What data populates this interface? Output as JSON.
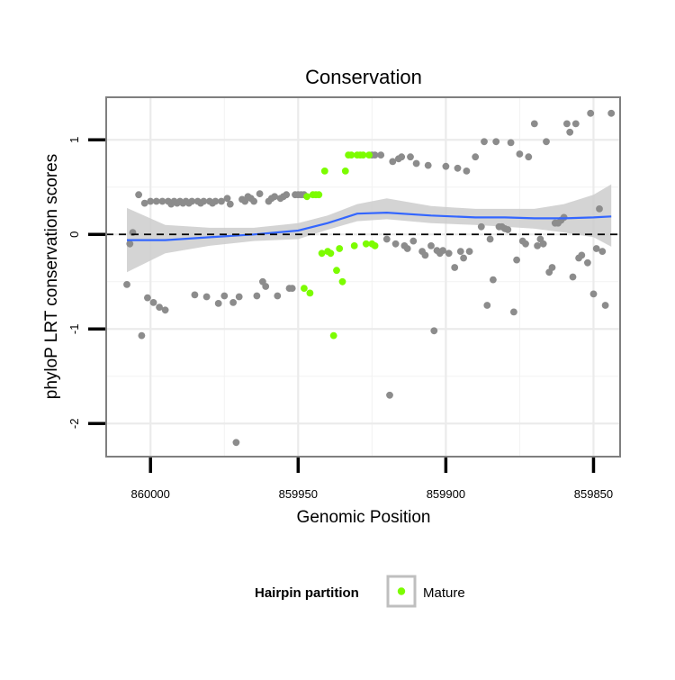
{
  "chart_data": {
    "type": "scatter",
    "title": "Conservation",
    "xlabel": "Genomic Position",
    "ylabel": "phyloP LRT conservation scores",
    "x_reversed": true,
    "xlim": [
      860015,
      859841
    ],
    "ylim": [
      -2.35,
      1.45
    ],
    "x_ticks": [
      860000,
      859950,
      859900,
      859850
    ],
    "y_ticks": [
      -2,
      -1,
      0,
      1
    ],
    "x_tick_labels": [
      "860000",
      "859950",
      "859900",
      "859850"
    ],
    "y_tick_labels": [
      "-2",
      "-1",
      "0",
      "1"
    ],
    "grid": true,
    "reference_line": {
      "y": 0,
      "style": "dashed"
    },
    "legend": {
      "title": "Hairpin partition",
      "placement": "bottom",
      "entries": [
        "Mature"
      ]
    },
    "colors": {
      "other": "#8c8c8c",
      "mature": "#7cfc00",
      "smooth": "#3366ff",
      "ribbon": "#cccccc"
    },
    "series": [
      {
        "key": "other",
        "points": [
          [
            860008,
            -0.53
          ],
          [
            860007,
            -0.1
          ],
          [
            860006,
            0.02
          ],
          [
            860004,
            0.42
          ],
          [
            860003,
            -1.07
          ],
          [
            860002,
            0.33
          ],
          [
            860001,
            -0.67
          ],
          [
            860000,
            0.35
          ],
          [
            859999,
            -0.72
          ],
          [
            859998,
            0.35
          ],
          [
            859997,
            -0.77
          ],
          [
            859996,
            0.35
          ],
          [
            859995,
            -0.8
          ],
          [
            859994,
            0.35
          ],
          [
            859993,
            0.32
          ],
          [
            859992,
            0.35
          ],
          [
            859991,
            0.33
          ],
          [
            859990,
            0.35
          ],
          [
            859989,
            0.33
          ],
          [
            859988,
            0.35
          ],
          [
            859987,
            0.33
          ],
          [
            859986,
            0.35
          ],
          [
            859985,
            -0.64
          ],
          [
            859984,
            0.35
          ],
          [
            859983,
            0.33
          ],
          [
            859982,
            0.35
          ],
          [
            859981,
            -0.66
          ],
          [
            859980,
            0.35
          ],
          [
            859979,
            0.33
          ],
          [
            859978,
            0.35
          ],
          [
            859977,
            -0.73
          ],
          [
            859976,
            0.35
          ],
          [
            859975,
            -0.65
          ],
          [
            859974,
            0.38
          ],
          [
            859973,
            0.32
          ],
          [
            859972,
            -0.72
          ],
          [
            859971,
            -2.2
          ],
          [
            859970,
            -0.66
          ],
          [
            859969,
            0.37
          ],
          [
            859968,
            0.35
          ],
          [
            859967,
            0.4
          ],
          [
            859966,
            0.38
          ],
          [
            859965,
            0.35
          ],
          [
            859964,
            -0.65
          ],
          [
            859963,
            0.43
          ],
          [
            859962,
            -0.5
          ],
          [
            859961,
            -0.55
          ],
          [
            859960,
            0.35
          ],
          [
            859959,
            0.38
          ],
          [
            859958,
            0.4
          ],
          [
            859957,
            -0.65
          ],
          [
            859956,
            0.38
          ],
          [
            859955,
            0.4
          ],
          [
            859954,
            0.42
          ],
          [
            859953,
            -0.57
          ],
          [
            859952,
            -0.57
          ],
          [
            859951,
            0.42
          ],
          [
            859950,
            0.42
          ],
          [
            859949,
            0.42
          ],
          [
            859948,
            0.42
          ],
          [
            859925,
            0.84
          ],
          [
            859924,
            0.84
          ],
          [
            859922,
            0.84
          ],
          [
            859920,
            -0.05
          ],
          [
            859919,
            -1.7
          ],
          [
            859918,
            0.77
          ],
          [
            859917,
            -0.1
          ],
          [
            859916,
            0.8
          ],
          [
            859915,
            0.82
          ],
          [
            859914,
            -0.12
          ],
          [
            859913,
            -0.15
          ],
          [
            859912,
            0.82
          ],
          [
            859911,
            -0.07
          ],
          [
            859910,
            0.75
          ],
          [
            859908,
            -0.18
          ],
          [
            859907,
            -0.22
          ],
          [
            859906,
            0.73
          ],
          [
            859905,
            -0.12
          ],
          [
            859904,
            -1.02
          ],
          [
            859903,
            -0.17
          ],
          [
            859902,
            -0.2
          ],
          [
            859901,
            -0.17
          ],
          [
            859900,
            0.72
          ],
          [
            859899,
            -0.2
          ],
          [
            859897,
            -0.35
          ],
          [
            859896,
            0.7
          ],
          [
            859895,
            -0.18
          ],
          [
            859894,
            -0.25
          ],
          [
            859893,
            0.67
          ],
          [
            859892,
            -0.18
          ],
          [
            859890,
            0.82
          ],
          [
            859888,
            0.08
          ],
          [
            859887,
            0.98
          ],
          [
            859886,
            -0.75
          ],
          [
            859885,
            -0.05
          ],
          [
            859884,
            -0.48
          ],
          [
            859883,
            0.98
          ],
          [
            859882,
            0.08
          ],
          [
            859881,
            0.08
          ],
          [
            859880,
            0.06
          ],
          [
            859879,
            0.05
          ],
          [
            859878,
            0.97
          ],
          [
            859877,
            -0.82
          ],
          [
            859876,
            -0.27
          ],
          [
            859875,
            0.85
          ],
          [
            859874,
            -0.07
          ],
          [
            859873,
            -0.1
          ],
          [
            859872,
            0.82
          ],
          [
            859870,
            1.17
          ],
          [
            859869,
            -0.12
          ],
          [
            859868,
            -0.05
          ],
          [
            859867,
            -0.1
          ],
          [
            859866,
            0.98
          ],
          [
            859865,
            -0.4
          ],
          [
            859864,
            -0.35
          ],
          [
            859863,
            0.12
          ],
          [
            859862,
            0.12
          ],
          [
            859861,
            0.15
          ],
          [
            859860,
            0.18
          ],
          [
            859859,
            1.17
          ],
          [
            859858,
            1.08
          ],
          [
            859857,
            -0.45
          ],
          [
            859856,
            1.17
          ],
          [
            859855,
            -0.25
          ],
          [
            859854,
            -0.22
          ],
          [
            859852,
            -0.3
          ],
          [
            859851,
            1.28
          ],
          [
            859850,
            -0.63
          ],
          [
            859849,
            -0.15
          ],
          [
            859848,
            0.27
          ],
          [
            859847,
            -0.18
          ],
          [
            859846,
            -0.75
          ],
          [
            859844,
            1.28
          ]
        ]
      },
      {
        "key": "mature",
        "points": [
          [
            859948,
            -0.57
          ],
          [
            859947,
            0.4
          ],
          [
            859946,
            -0.62
          ],
          [
            859945,
            0.42
          ],
          [
            859944,
            0.42
          ],
          [
            859943,
            0.42
          ],
          [
            859942,
            -0.2
          ],
          [
            859941,
            0.67
          ],
          [
            859940,
            -0.18
          ],
          [
            859939,
            -0.2
          ],
          [
            859938,
            -1.07
          ],
          [
            859937,
            -0.38
          ],
          [
            859936,
            -0.15
          ],
          [
            859935,
            -0.5
          ],
          [
            859934,
            0.67
          ],
          [
            859933,
            0.84
          ],
          [
            859932,
            0.84
          ],
          [
            859931,
            -0.12
          ],
          [
            859930,
            0.84
          ],
          [
            859929,
            0.84
          ],
          [
            859928,
            0.84
          ],
          [
            859927,
            -0.1
          ],
          [
            859926,
            0.84
          ],
          [
            859925,
            -0.1
          ],
          [
            859924,
            -0.12
          ]
        ]
      }
    ],
    "smooth_line": {
      "x": [
        860008,
        859995,
        859980,
        859965,
        859950,
        859940,
        859930,
        859920,
        859905,
        859890,
        859880,
        859870,
        859860,
        859850,
        859844
      ],
      "y": [
        -0.06,
        -0.06,
        -0.03,
        0.0,
        0.04,
        0.12,
        0.22,
        0.23,
        0.2,
        0.18,
        0.18,
        0.17,
        0.17,
        0.18,
        0.19
      ],
      "lower": [
        -0.4,
        -0.2,
        -0.12,
        -0.07,
        -0.05,
        0.05,
        0.14,
        0.16,
        0.12,
        0.1,
        0.08,
        0.06,
        0.02,
        -0.03,
        -0.13
      ],
      "upper": [
        0.28,
        0.1,
        0.07,
        0.07,
        0.12,
        0.2,
        0.32,
        0.38,
        0.3,
        0.27,
        0.27,
        0.27,
        0.32,
        0.42,
        0.53
      ]
    }
  }
}
